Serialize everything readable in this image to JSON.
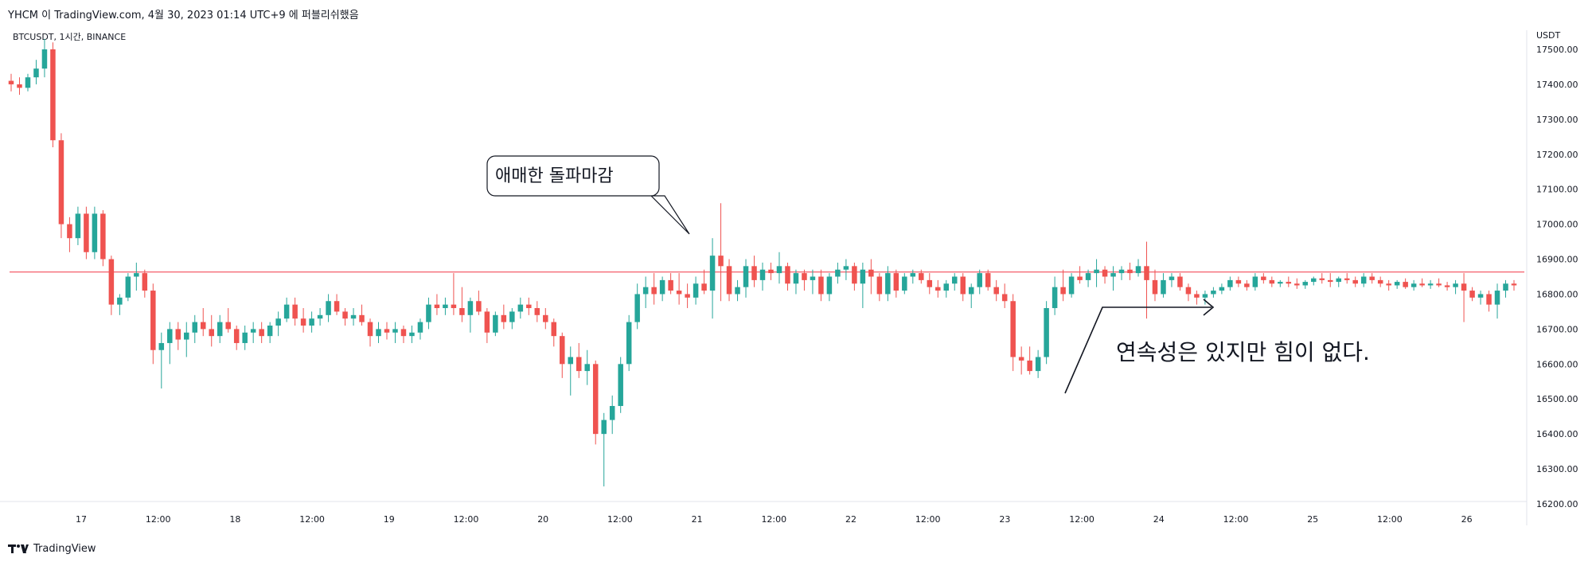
{
  "header": {
    "author_line": "YHCM 이 TradingView.com, 4월 30, 2023 01:14 UTC+9 에 퍼블리쉬했음",
    "symbol_line": "BTCUSDT, 1시간, BINANCE"
  },
  "footer": {
    "brand": "TradingView",
    "logo_icon": "tradingview-logo-icon"
  },
  "colors": {
    "up": "#26a69a",
    "down": "#ef5350",
    "line": "#f23645",
    "grid": "#e0e3eb"
  },
  "chart_data": {
    "type": "candlestick",
    "currency_label": "USDT",
    "ylim": [
      16150,
      17530
    ],
    "y_ticks": [
      "17500.00",
      "17400.00",
      "17300.00",
      "17200.00",
      "17100.00",
      "17000.00",
      "16900.00",
      "16800.00",
      "16700.00",
      "16600.00",
      "16500.00",
      "16400.00",
      "16300.00",
      "16200.00"
    ],
    "x_ticks": [
      "17",
      "12:00",
      "18",
      "12:00",
      "19",
      "12:00",
      "20",
      "12:00",
      "21",
      "12:00",
      "22",
      "12:00",
      "23",
      "12:00",
      "24",
      "12:00",
      "25",
      "12:00",
      "26"
    ],
    "horizontal_line": 16863,
    "annotations": [
      {
        "text": "애매한 돌파마감"
      },
      {
        "text": "연속성은 있지만 힘이 없다."
      }
    ],
    "candles": [
      [
        17410,
        17430,
        17380,
        17400
      ],
      [
        17400,
        17420,
        17370,
        17390
      ],
      [
        17390,
        17430,
        17380,
        17420
      ],
      [
        17420,
        17470,
        17400,
        17445
      ],
      [
        17445,
        17530,
        17420,
        17500
      ],
      [
        17500,
        17520,
        17220,
        17240
      ],
      [
        17240,
        17260,
        16960,
        17000
      ],
      [
        17000,
        17020,
        16920,
        16960
      ],
      [
        16960,
        17050,
        16940,
        17030
      ],
      [
        17030,
        17050,
        16900,
        16920
      ],
      [
        16920,
        17050,
        16900,
        17030
      ],
      [
        17030,
        17040,
        16880,
        16900
      ],
      [
        16900,
        16910,
        16740,
        16770
      ],
      [
        16770,
        16800,
        16740,
        16790
      ],
      [
        16790,
        16860,
        16780,
        16850
      ],
      [
        16850,
        16890,
        16810,
        16860
      ],
      [
        16860,
        16870,
        16790,
        16810
      ],
      [
        16810,
        16830,
        16600,
        16640
      ],
      [
        16640,
        16690,
        16530,
        16660
      ],
      [
        16660,
        16720,
        16600,
        16700
      ],
      [
        16700,
        16720,
        16640,
        16670
      ],
      [
        16670,
        16720,
        16620,
        16690
      ],
      [
        16690,
        16740,
        16660,
        16720
      ],
      [
        16720,
        16760,
        16680,
        16700
      ],
      [
        16700,
        16740,
        16650,
        16680
      ],
      [
        16680,
        16740,
        16660,
        16720
      ],
      [
        16720,
        16760,
        16690,
        16700
      ],
      [
        16700,
        16710,
        16640,
        16660
      ],
      [
        16660,
        16710,
        16640,
        16690
      ],
      [
        16690,
        16720,
        16660,
        16700
      ],
      [
        16700,
        16720,
        16660,
        16680
      ],
      [
        16680,
        16720,
        16660,
        16710
      ],
      [
        16710,
        16750,
        16680,
        16730
      ],
      [
        16730,
        16790,
        16720,
        16770
      ],
      [
        16770,
        16790,
        16710,
        16730
      ],
      [
        16730,
        16760,
        16690,
        16710
      ],
      [
        16710,
        16750,
        16690,
        16730
      ],
      [
        16730,
        16760,
        16710,
        16740
      ],
      [
        16740,
        16800,
        16720,
        16780
      ],
      [
        16780,
        16800,
        16740,
        16750
      ],
      [
        16750,
        16760,
        16710,
        16730
      ],
      [
        16730,
        16760,
        16710,
        16740
      ],
      [
        16740,
        16770,
        16710,
        16720
      ],
      [
        16720,
        16730,
        16650,
        16680
      ],
      [
        16680,
        16720,
        16660,
        16700
      ],
      [
        16700,
        16720,
        16670,
        16690
      ],
      [
        16690,
        16720,
        16660,
        16700
      ],
      [
        16700,
        16710,
        16660,
        16680
      ],
      [
        16680,
        16710,
        16660,
        16690
      ],
      [
        16690,
        16730,
        16670,
        16720
      ],
      [
        16720,
        16790,
        16700,
        16770
      ],
      [
        16770,
        16800,
        16740,
        16760
      ],
      [
        16760,
        16790,
        16740,
        16770
      ],
      [
        16770,
        16860,
        16740,
        16760
      ],
      [
        16760,
        16820,
        16720,
        16740
      ],
      [
        16740,
        16790,
        16690,
        16780
      ],
      [
        16780,
        16810,
        16740,
        16750
      ],
      [
        16750,
        16760,
        16660,
        16690
      ],
      [
        16690,
        16750,
        16680,
        16740
      ],
      [
        16740,
        16770,
        16700,
        16720
      ],
      [
        16720,
        16760,
        16700,
        16750
      ],
      [
        16750,
        16790,
        16730,
        16770
      ],
      [
        16770,
        16790,
        16740,
        16760
      ],
      [
        16760,
        16780,
        16720,
        16740
      ],
      [
        16740,
        16760,
        16700,
        16720
      ],
      [
        16720,
        16730,
        16650,
        16680
      ],
      [
        16680,
        16690,
        16560,
        16600
      ],
      [
        16600,
        16650,
        16510,
        16620
      ],
      [
        16620,
        16660,
        16560,
        16580
      ],
      [
        16580,
        16640,
        16540,
        16600
      ],
      [
        16600,
        16610,
        16370,
        16400
      ],
      [
        16400,
        16460,
        16250,
        16440
      ],
      [
        16440,
        16510,
        16400,
        16480
      ],
      [
        16480,
        16620,
        16460,
        16600
      ],
      [
        16600,
        16740,
        16580,
        16720
      ],
      [
        16720,
        16830,
        16700,
        16800
      ],
      [
        16800,
        16850,
        16760,
        16820
      ],
      [
        16820,
        16860,
        16770,
        16800
      ],
      [
        16800,
        16850,
        16780,
        16840
      ],
      [
        16840,
        16860,
        16800,
        16810
      ],
      [
        16810,
        16860,
        16770,
        16800
      ],
      [
        16800,
        16830,
        16760,
        16790
      ],
      [
        16790,
        16850,
        16770,
        16830
      ],
      [
        16830,
        16870,
        16800,
        16810
      ],
      [
        16810,
        16960,
        16730,
        16910
      ],
      [
        16910,
        17060,
        16780,
        16880
      ],
      [
        16880,
        16900,
        16780,
        16800
      ],
      [
        16800,
        16840,
        16780,
        16820
      ],
      [
        16820,
        16900,
        16790,
        16880
      ],
      [
        16880,
        16910,
        16820,
        16840
      ],
      [
        16840,
        16890,
        16810,
        16870
      ],
      [
        16870,
        16890,
        16840,
        16860
      ],
      [
        16860,
        16920,
        16830,
        16880
      ],
      [
        16880,
        16890,
        16810,
        16830
      ],
      [
        16830,
        16870,
        16800,
        16860
      ],
      [
        16860,
        16870,
        16810,
        16840
      ],
      [
        16840,
        16870,
        16800,
        16850
      ],
      [
        16850,
        16870,
        16780,
        16800
      ],
      [
        16800,
        16860,
        16780,
        16850
      ],
      [
        16850,
        16890,
        16830,
        16870
      ],
      [
        16870,
        16900,
        16840,
        16880
      ],
      [
        16880,
        16890,
        16810,
        16830
      ],
      [
        16830,
        16890,
        16760,
        16870
      ],
      [
        16870,
        16900,
        16800,
        16850
      ],
      [
        16850,
        16860,
        16780,
        16800
      ],
      [
        16800,
        16880,
        16780,
        16860
      ],
      [
        16860,
        16870,
        16790,
        16810
      ],
      [
        16810,
        16860,
        16800,
        16850
      ],
      [
        16850,
        16870,
        16830,
        16860
      ],
      [
        16860,
        16870,
        16830,
        16840
      ],
      [
        16840,
        16860,
        16800,
        16820
      ],
      [
        16820,
        16840,
        16790,
        16810
      ],
      [
        16810,
        16840,
        16790,
        16830
      ],
      [
        16830,
        16860,
        16810,
        16850
      ],
      [
        16850,
        16860,
        16780,
        16800
      ],
      [
        16800,
        16830,
        16760,
        16820
      ],
      [
        16820,
        16870,
        16800,
        16860
      ],
      [
        16860,
        16870,
        16810,
        16820
      ],
      [
        16820,
        16840,
        16780,
        16800
      ],
      [
        16800,
        16830,
        16760,
        16780
      ],
      [
        16780,
        16800,
        16580,
        16620
      ],
      [
        16620,
        16650,
        16570,
        16610
      ],
      [
        16610,
        16650,
        16570,
        16580
      ],
      [
        16580,
        16640,
        16560,
        16620
      ],
      [
        16620,
        16780,
        16600,
        16760
      ],
      [
        16760,
        16850,
        16740,
        16820
      ],
      [
        16820,
        16870,
        16780,
        16800
      ],
      [
        16800,
        16860,
        16790,
        16850
      ],
      [
        16850,
        16880,
        16830,
        16840
      ],
      [
        16840,
        16870,
        16820,
        16860
      ],
      [
        16860,
        16900,
        16820,
        16870
      ],
      [
        16870,
        16880,
        16830,
        16850
      ],
      [
        16850,
        16880,
        16810,
        16860
      ],
      [
        16860,
        16880,
        16840,
        16870
      ],
      [
        16870,
        16890,
        16840,
        16860
      ],
      [
        16860,
        16900,
        16850,
        16880
      ],
      [
        16880,
        16950,
        16730,
        16840
      ],
      [
        16840,
        16870,
        16780,
        16800
      ],
      [
        16800,
        16860,
        16790,
        16840
      ],
      [
        16840,
        16860,
        16820,
        16850
      ],
      [
        16850,
        16860,
        16810,
        16820
      ],
      [
        16820,
        16830,
        16780,
        16800
      ],
      [
        16800,
        16810,
        16770,
        16790
      ],
      [
        16790,
        16810,
        16770,
        16800
      ],
      [
        16800,
        16820,
        16790,
        16810
      ],
      [
        16810,
        16830,
        16800,
        16820
      ],
      [
        16820,
        16850,
        16810,
        16840
      ],
      [
        16840,
        16850,
        16820,
        16830
      ],
      [
        16830,
        16840,
        16810,
        16820
      ],
      [
        16820,
        16860,
        16810,
        16850
      ],
      [
        16850,
        16860,
        16830,
        16840
      ],
      [
        16840,
        16850,
        16820,
        16830
      ],
      [
        16830,
        16840,
        16820,
        16835
      ],
      [
        16835,
        16850,
        16820,
        16830
      ],
      [
        16830,
        16845,
        16815,
        16825
      ],
      [
        16825,
        16840,
        16815,
        16835
      ],
      [
        16835,
        16850,
        16825,
        16845
      ],
      [
        16845,
        16860,
        16830,
        16840
      ],
      [
        16840,
        16860,
        16820,
        16835
      ],
      [
        16835,
        16850,
        16820,
        16845
      ],
      [
        16845,
        16860,
        16830,
        16840
      ],
      [
        16840,
        16850,
        16820,
        16830
      ],
      [
        16830,
        16860,
        16820,
        16850
      ],
      [
        16850,
        16860,
        16830,
        16840
      ],
      [
        16840,
        16850,
        16820,
        16830
      ],
      [
        16830,
        16840,
        16810,
        16825
      ],
      [
        16825,
        16840,
        16815,
        16835
      ],
      [
        16835,
        16845,
        16815,
        16820
      ],
      [
        16820,
        16840,
        16810,
        16830
      ],
      [
        16830,
        16845,
        16820,
        16825
      ],
      [
        16825,
        16840,
        16815,
        16830
      ],
      [
        16830,
        16845,
        16820,
        16825
      ],
      [
        16825,
        16835,
        16810,
        16820
      ],
      [
        16820,
        16840,
        16800,
        16830
      ],
      [
        16830,
        16860,
        16720,
        16810
      ],
      [
        16810,
        16820,
        16780,
        16790
      ],
      [
        16790,
        16810,
        16770,
        16800
      ],
      [
        16800,
        16810,
        16750,
        16770
      ],
      [
        16770,
        16830,
        16730,
        16810
      ],
      [
        16810,
        16840,
        16790,
        16830
      ],
      [
        16830,
        16840,
        16810,
        16825
      ]
    ]
  }
}
